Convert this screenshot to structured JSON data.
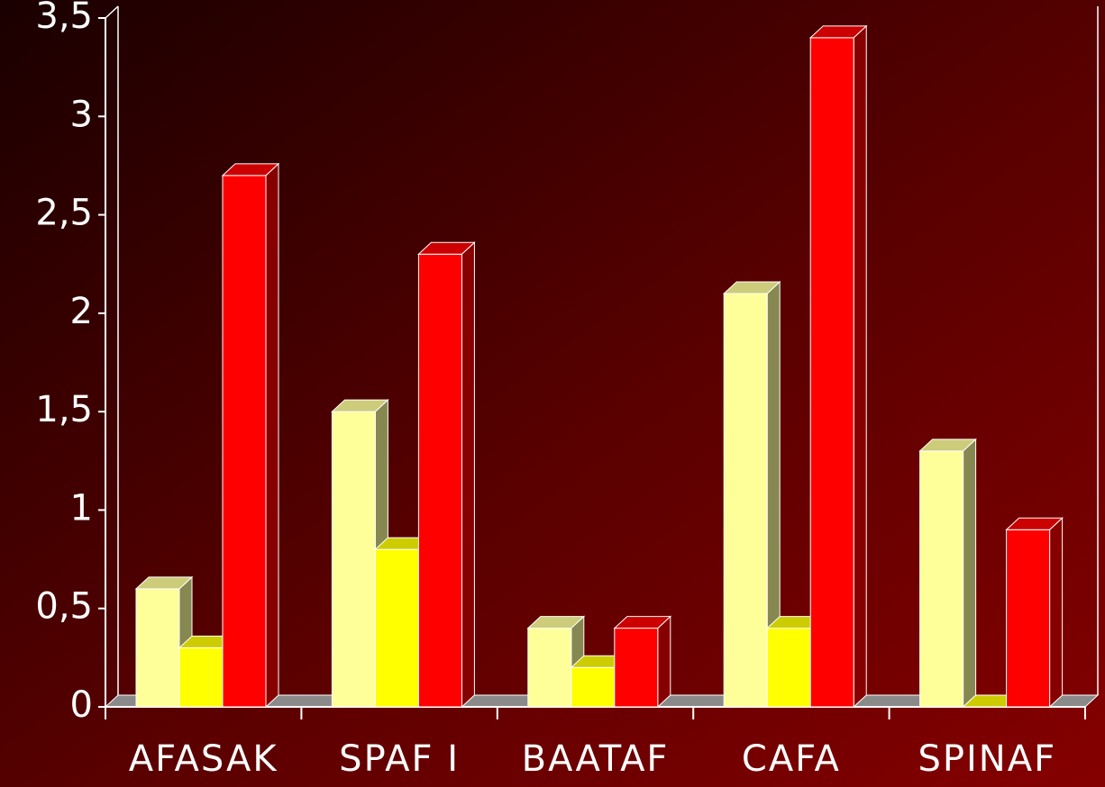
{
  "chart_data": {
    "type": "bar3d",
    "categories": [
      "AFASAK",
      "SPAF I",
      "BAATAF",
      "CAFA",
      "SPINAF"
    ],
    "series": [
      {
        "color": "#ffff99",
        "values": [
          0.6,
          1.5,
          0.4,
          2.1,
          1.3
        ]
      },
      {
        "color": "#ffff00",
        "values": [
          0.3,
          0.8,
          0.2,
          0.4,
          0
        ]
      },
      {
        "color": "#ff0000",
        "values": [
          2.7,
          2.3,
          0.4,
          3.4,
          0.9
        ]
      }
    ],
    "ylim": [
      0,
      3.5
    ],
    "yticks": [
      0,
      {
        "value": 0.5,
        "label": "0,5"
      },
      1,
      {
        "value": 1.5,
        "label": "1,5"
      },
      2,
      {
        "value": 2.5,
        "label": "2,5"
      },
      3,
      {
        "value": 3.5,
        "label": "3,5"
      }
    ]
  }
}
